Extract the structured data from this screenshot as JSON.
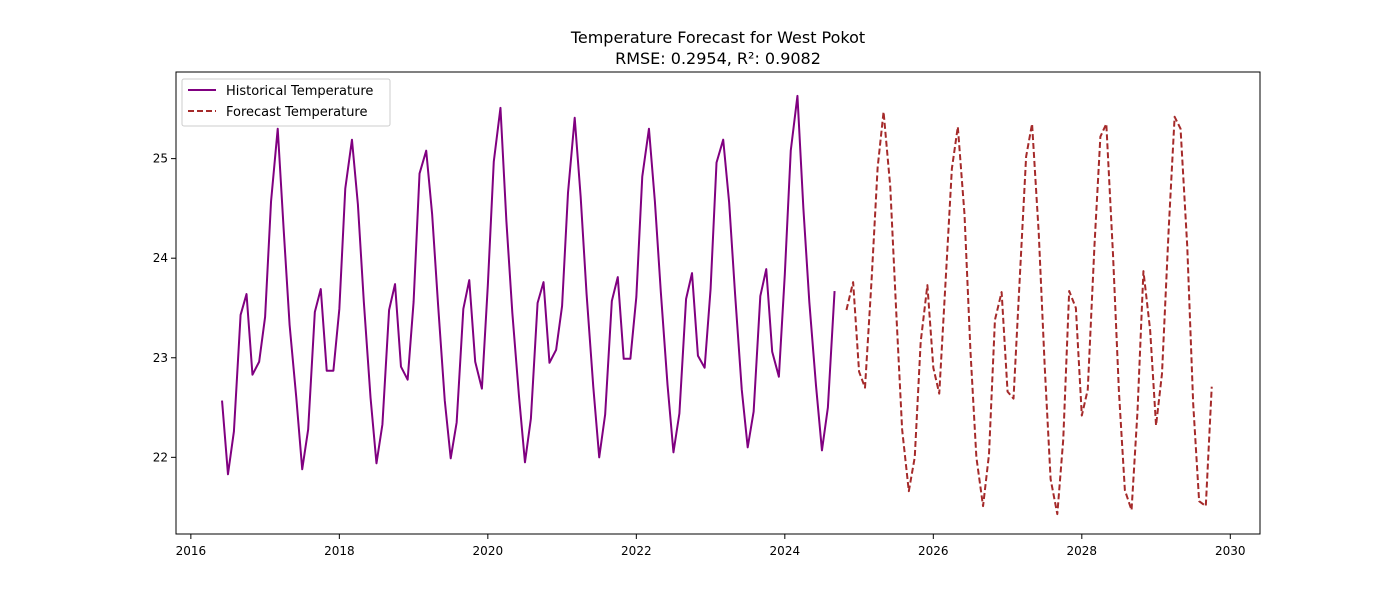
{
  "chart_data": {
    "type": "line",
    "title": "Temperature Forecast for West Pokot",
    "subtitle": "RMSE: 0.2954, R²: 0.9082",
    "xlabel": "",
    "ylabel": "",
    "xlim": [
      2015.8,
      2030.4
    ],
    "ylim": [
      21.23,
      25.87
    ],
    "x_ticks": [
      2016,
      2018,
      2020,
      2022,
      2024,
      2026,
      2028,
      2030
    ],
    "y_ticks": [
      22,
      23,
      24,
      25
    ],
    "x_tick_labels": [
      "2016",
      "2018",
      "2020",
      "2022",
      "2024",
      "2026",
      "2028",
      "2030"
    ],
    "y_tick_labels": [
      "22",
      "23",
      "24",
      "25"
    ],
    "grid": false,
    "legend_position": "top-left",
    "series": [
      {
        "name": "Historical Temperature",
        "color": "#800080",
        "style": "solid",
        "points": [
          [
            2016.42,
            22.57
          ],
          [
            2016.5,
            21.83
          ],
          [
            2016.58,
            22.26
          ],
          [
            2016.67,
            23.43
          ],
          [
            2016.75,
            23.64
          ],
          [
            2016.83,
            22.83
          ],
          [
            2016.92,
            22.96
          ],
          [
            2017.0,
            23.41
          ],
          [
            2017.08,
            24.57
          ],
          [
            2017.17,
            25.3
          ],
          [
            2017.25,
            24.29
          ],
          [
            2017.33,
            23.33
          ],
          [
            2017.42,
            22.6
          ],
          [
            2017.5,
            21.88
          ],
          [
            2017.58,
            22.28
          ],
          [
            2017.67,
            23.46
          ],
          [
            2017.75,
            23.69
          ],
          [
            2017.83,
            22.87
          ],
          [
            2017.92,
            22.87
          ],
          [
            2018.0,
            23.49
          ],
          [
            2018.08,
            24.7
          ],
          [
            2018.17,
            25.19
          ],
          [
            2018.25,
            24.54
          ],
          [
            2018.33,
            23.56
          ],
          [
            2018.42,
            22.6
          ],
          [
            2018.5,
            21.94
          ],
          [
            2018.58,
            22.33
          ],
          [
            2018.67,
            23.48
          ],
          [
            2018.75,
            23.74
          ],
          [
            2018.83,
            22.91
          ],
          [
            2018.92,
            22.78
          ],
          [
            2019.0,
            23.56
          ],
          [
            2019.08,
            24.85
          ],
          [
            2019.17,
            25.08
          ],
          [
            2019.25,
            24.44
          ],
          [
            2019.33,
            23.53
          ],
          [
            2019.42,
            22.57
          ],
          [
            2019.5,
            21.99
          ],
          [
            2019.58,
            22.35
          ],
          [
            2019.67,
            23.49
          ],
          [
            2019.75,
            23.78
          ],
          [
            2019.83,
            22.96
          ],
          [
            2019.92,
            22.69
          ],
          [
            2020.0,
            23.73
          ],
          [
            2020.08,
            24.97
          ],
          [
            2020.17,
            25.51
          ],
          [
            2020.25,
            24.37
          ],
          [
            2020.33,
            23.45
          ],
          [
            2020.42,
            22.61
          ],
          [
            2020.5,
            21.95
          ],
          [
            2020.58,
            22.39
          ],
          [
            2020.67,
            23.55
          ],
          [
            2020.75,
            23.76
          ],
          [
            2020.83,
            22.95
          ],
          [
            2020.92,
            23.08
          ],
          [
            2021.0,
            23.52
          ],
          [
            2021.08,
            24.66
          ],
          [
            2021.17,
            25.41
          ],
          [
            2021.25,
            24.62
          ],
          [
            2021.33,
            23.64
          ],
          [
            2021.42,
            22.71
          ],
          [
            2021.5,
            22.0
          ],
          [
            2021.58,
            22.43
          ],
          [
            2021.67,
            23.57
          ],
          [
            2021.75,
            23.81
          ],
          [
            2021.83,
            22.99
          ],
          [
            2021.92,
            22.99
          ],
          [
            2022.0,
            23.61
          ],
          [
            2022.08,
            24.82
          ],
          [
            2022.17,
            25.3
          ],
          [
            2022.25,
            24.57
          ],
          [
            2022.33,
            23.66
          ],
          [
            2022.42,
            22.73
          ],
          [
            2022.5,
            22.05
          ],
          [
            2022.58,
            22.44
          ],
          [
            2022.67,
            23.59
          ],
          [
            2022.75,
            23.85
          ],
          [
            2022.83,
            23.02
          ],
          [
            2022.92,
            22.9
          ],
          [
            2023.0,
            23.69
          ],
          [
            2023.08,
            24.96
          ],
          [
            2023.17,
            25.19
          ],
          [
            2023.25,
            24.56
          ],
          [
            2023.33,
            23.64
          ],
          [
            2023.42,
            22.68
          ],
          [
            2023.5,
            22.1
          ],
          [
            2023.58,
            22.46
          ],
          [
            2023.67,
            23.62
          ],
          [
            2023.75,
            23.89
          ],
          [
            2023.83,
            23.06
          ],
          [
            2023.92,
            22.81
          ],
          [
            2024.0,
            23.84
          ],
          [
            2024.08,
            25.08
          ],
          [
            2024.17,
            25.63
          ],
          [
            2024.25,
            24.5
          ],
          [
            2024.33,
            23.56
          ],
          [
            2024.42,
            22.72
          ],
          [
            2024.5,
            22.07
          ],
          [
            2024.58,
            22.5
          ],
          [
            2024.67,
            23.67
          ]
        ]
      },
      {
        "name": "Forecast Temperature",
        "color": "#a52a2a",
        "style": "dashed",
        "points": [
          [
            2024.83,
            23.48
          ],
          [
            2024.92,
            23.76
          ],
          [
            2025.0,
            22.86
          ],
          [
            2025.08,
            22.7
          ],
          [
            2025.17,
            23.8
          ],
          [
            2025.25,
            24.91
          ],
          [
            2025.33,
            25.47
          ],
          [
            2025.42,
            24.72
          ],
          [
            2025.5,
            23.47
          ],
          [
            2025.58,
            22.28
          ],
          [
            2025.67,
            21.66
          ],
          [
            2025.75,
            22.0
          ],
          [
            2025.83,
            23.16
          ],
          [
            2025.92,
            23.73
          ],
          [
            2026.0,
            22.9
          ],
          [
            2026.08,
            22.64
          ],
          [
            2026.17,
            23.83
          ],
          [
            2026.25,
            24.9
          ],
          [
            2026.33,
            25.32
          ],
          [
            2026.42,
            24.44
          ],
          [
            2026.5,
            23.07
          ],
          [
            2026.58,
            22.0
          ],
          [
            2026.67,
            21.51
          ],
          [
            2026.75,
            22.03
          ],
          [
            2026.83,
            23.38
          ],
          [
            2026.92,
            23.66
          ],
          [
            2027.0,
            22.66
          ],
          [
            2027.08,
            22.59
          ],
          [
            2027.17,
            23.88
          ],
          [
            2027.25,
            25.02
          ],
          [
            2027.33,
            25.35
          ],
          [
            2027.42,
            24.25
          ],
          [
            2027.5,
            22.92
          ],
          [
            2027.58,
            21.78
          ],
          [
            2027.67,
            21.43
          ],
          [
            2027.75,
            22.18
          ],
          [
            2027.83,
            23.67
          ],
          [
            2027.92,
            23.5
          ],
          [
            2028.0,
            22.42
          ],
          [
            2028.08,
            22.68
          ],
          [
            2028.17,
            24.12
          ],
          [
            2028.25,
            25.22
          ],
          [
            2028.33,
            25.35
          ],
          [
            2028.42,
            24.04
          ],
          [
            2028.5,
            22.66
          ],
          [
            2028.58,
            21.67
          ],
          [
            2028.67,
            21.47
          ],
          [
            2028.75,
            22.46
          ],
          [
            2028.83,
            23.87
          ],
          [
            2028.92,
            23.28
          ],
          [
            2029.0,
            22.32
          ],
          [
            2029.08,
            22.84
          ],
          [
            2029.17,
            24.29
          ],
          [
            2029.25,
            25.42
          ],
          [
            2029.33,
            25.3
          ],
          [
            2029.42,
            24.12
          ],
          [
            2029.5,
            22.54
          ],
          [
            2029.58,
            21.56
          ],
          [
            2029.67,
            21.51
          ],
          [
            2029.75,
            22.71
          ]
        ]
      }
    ]
  }
}
